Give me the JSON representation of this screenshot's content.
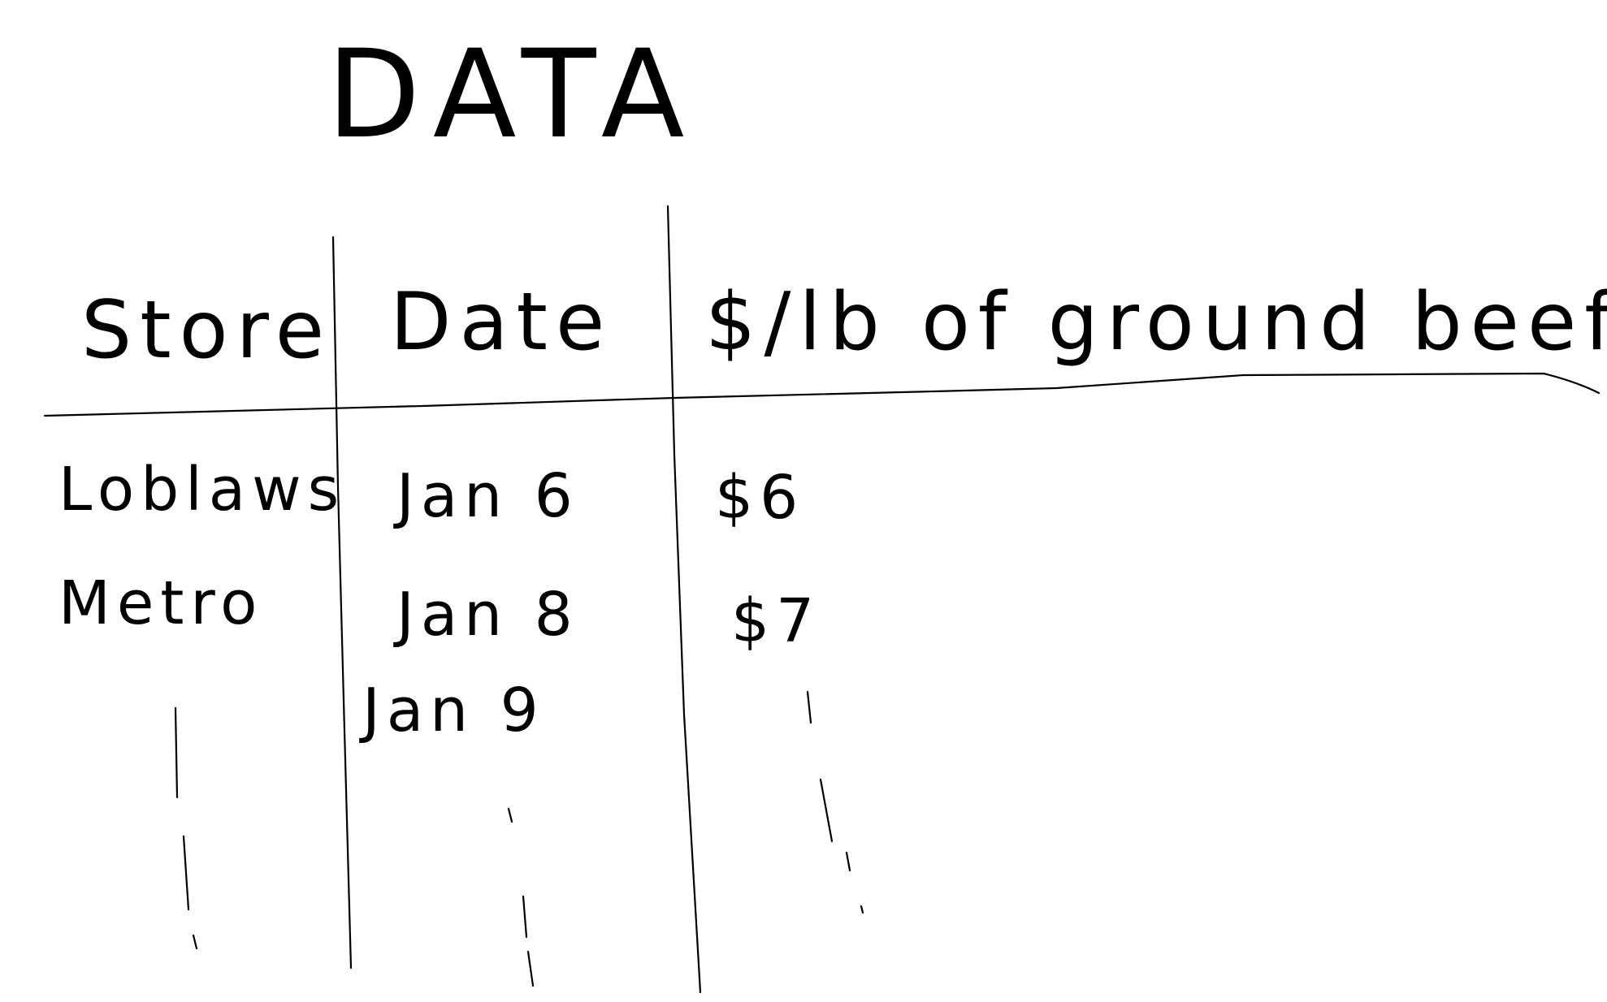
{
  "title": "DATA",
  "table": {
    "headers": [
      "Store",
      "Date",
      "$/lb of ground beef"
    ],
    "rows": [
      [
        "Loblaws",
        "Jan 6",
        "$6"
      ],
      [
        "Metro",
        "Jan 8",
        "$7"
      ],
      [
        "",
        "Jan 9",
        ""
      ]
    ]
  },
  "ink_color": "#000000",
  "background_color": "#ffffff"
}
